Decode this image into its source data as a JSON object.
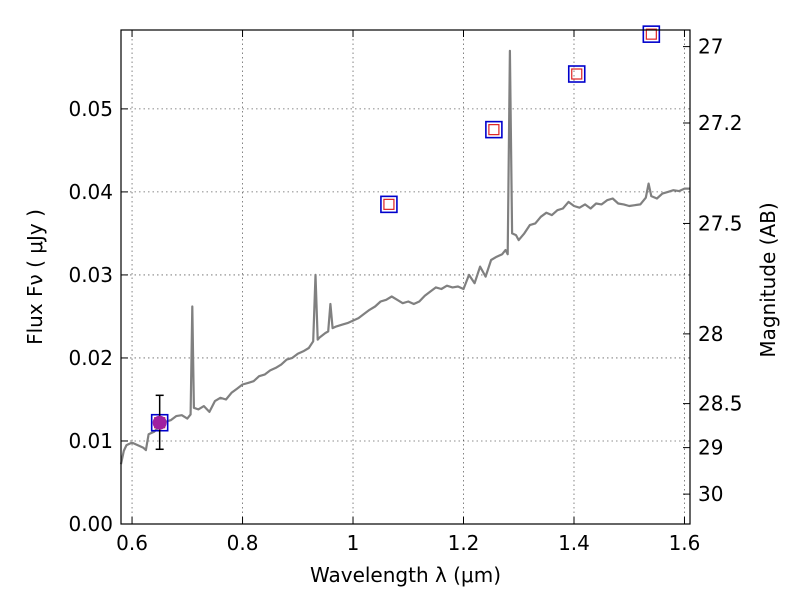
{
  "chart_data": {
    "type": "line",
    "title": "",
    "xlabel": "Wavelength  λ (μm)",
    "ylabel": "Flux  Fν  ( μJy )",
    "ylabel_right": "Magnitude (AB)",
    "xlim": [
      0.58,
      1.61
    ],
    "ylim": [
      0.0,
      0.0595
    ],
    "xticks": [
      0.6,
      0.8,
      1.0,
      1.2,
      1.4,
      1.6
    ],
    "xtick_labels": [
      "0.6",
      "0.8",
      "1",
      "1.2",
      "1.4",
      "1.6"
    ],
    "yticks": [
      0.0,
      0.01,
      0.02,
      0.03,
      0.04,
      0.05
    ],
    "ytick_labels": [
      "0.00",
      "0.01",
      "0.02",
      "0.03",
      "0.04",
      "0.05"
    ],
    "right_ticks": [
      {
        "label": "27",
        "flux": 0.0575
      },
      {
        "label": "27.2",
        "flux": 0.0483
      },
      {
        "label": "27.5",
        "flux": 0.0362
      },
      {
        "label": "28",
        "flux": 0.0229
      },
      {
        "label": "28.5",
        "flux": 0.0145
      },
      {
        "label": "29",
        "flux": 0.0092
      },
      {
        "label": "30",
        "flux": 0.0036
      }
    ],
    "grid": true,
    "series": [
      {
        "kind": "line",
        "color": "#808080",
        "points": [
          [
            0.58,
            0.0072
          ],
          [
            0.585,
            0.0088
          ],
          [
            0.59,
            0.0095
          ],
          [
            0.6,
            0.0098
          ],
          [
            0.61,
            0.0095
          ],
          [
            0.62,
            0.0092
          ],
          [
            0.625,
            0.0089
          ],
          [
            0.63,
            0.0108
          ],
          [
            0.64,
            0.0111
          ],
          [
            0.65,
            0.0118
          ],
          [
            0.66,
            0.0123
          ],
          [
            0.67,
            0.0125
          ],
          [
            0.68,
            0.013
          ],
          [
            0.69,
            0.0131
          ],
          [
            0.7,
            0.0127
          ],
          [
            0.706,
            0.0132
          ],
          [
            0.709,
            0.0262
          ],
          [
            0.712,
            0.014
          ],
          [
            0.72,
            0.0138
          ],
          [
            0.73,
            0.0142
          ],
          [
            0.74,
            0.0135
          ],
          [
            0.75,
            0.0148
          ],
          [
            0.76,
            0.0152
          ],
          [
            0.77,
            0.015
          ],
          [
            0.78,
            0.0158
          ],
          [
            0.79,
            0.0163
          ],
          [
            0.8,
            0.0168
          ],
          [
            0.81,
            0.017
          ],
          [
            0.82,
            0.0172
          ],
          [
            0.83,
            0.0178
          ],
          [
            0.84,
            0.018
          ],
          [
            0.85,
            0.0185
          ],
          [
            0.86,
            0.0188
          ],
          [
            0.87,
            0.0192
          ],
          [
            0.88,
            0.0198
          ],
          [
            0.89,
            0.02
          ],
          [
            0.9,
            0.0205
          ],
          [
            0.91,
            0.0208
          ],
          [
            0.92,
            0.0212
          ],
          [
            0.928,
            0.022
          ],
          [
            0.932,
            0.03
          ],
          [
            0.936,
            0.0222
          ],
          [
            0.94,
            0.0225
          ],
          [
            0.95,
            0.023
          ],
          [
            0.955,
            0.0232
          ],
          [
            0.959,
            0.0265
          ],
          [
            0.963,
            0.0236
          ],
          [
            0.97,
            0.0238
          ],
          [
            0.98,
            0.024
          ],
          [
            0.99,
            0.0242
          ],
          [
            1.0,
            0.0245
          ],
          [
            1.01,
            0.0248
          ],
          [
            1.02,
            0.0253
          ],
          [
            1.03,
            0.0258
          ],
          [
            1.04,
            0.0262
          ],
          [
            1.05,
            0.0268
          ],
          [
            1.06,
            0.027
          ],
          [
            1.07,
            0.0274
          ],
          [
            1.08,
            0.027
          ],
          [
            1.09,
            0.0266
          ],
          [
            1.1,
            0.0268
          ],
          [
            1.11,
            0.0265
          ],
          [
            1.12,
            0.0268
          ],
          [
            1.13,
            0.0275
          ],
          [
            1.14,
            0.028
          ],
          [
            1.15,
            0.0285
          ],
          [
            1.16,
            0.0283
          ],
          [
            1.17,
            0.0287
          ],
          [
            1.18,
            0.0285
          ],
          [
            1.19,
            0.0286
          ],
          [
            1.2,
            0.0283
          ],
          [
            1.21,
            0.03
          ],
          [
            1.22,
            0.029
          ],
          [
            1.23,
            0.031
          ],
          [
            1.24,
            0.0298
          ],
          [
            1.25,
            0.0318
          ],
          [
            1.26,
            0.0322
          ],
          [
            1.27,
            0.0325
          ],
          [
            1.276,
            0.033
          ],
          [
            1.28,
            0.0325
          ],
          [
            1.284,
            0.057
          ],
          [
            1.288,
            0.035
          ],
          [
            1.295,
            0.0348
          ],
          [
            1.3,
            0.0342
          ],
          [
            1.31,
            0.035
          ],
          [
            1.32,
            0.036
          ],
          [
            1.33,
            0.0362
          ],
          [
            1.34,
            0.037
          ],
          [
            1.35,
            0.0375
          ],
          [
            1.36,
            0.0372
          ],
          [
            1.37,
            0.0378
          ],
          [
            1.38,
            0.038
          ],
          [
            1.39,
            0.0388
          ],
          [
            1.4,
            0.0383
          ],
          [
            1.41,
            0.0381
          ],
          [
            1.42,
            0.0385
          ],
          [
            1.43,
            0.038
          ],
          [
            1.44,
            0.0386
          ],
          [
            1.45,
            0.0385
          ],
          [
            1.46,
            0.039
          ],
          [
            1.47,
            0.0392
          ],
          [
            1.48,
            0.0386
          ],
          [
            1.49,
            0.0385
          ],
          [
            1.5,
            0.0383
          ],
          [
            1.51,
            0.0384
          ],
          [
            1.52,
            0.0385
          ],
          [
            1.53,
            0.0393
          ],
          [
            1.535,
            0.041
          ],
          [
            1.54,
            0.0395
          ],
          [
            1.55,
            0.0392
          ],
          [
            1.56,
            0.0398
          ],
          [
            1.57,
            0.04
          ],
          [
            1.58,
            0.0402
          ],
          [
            1.59,
            0.0401
          ],
          [
            1.6,
            0.0404
          ],
          [
            1.61,
            0.0404
          ]
        ]
      },
      {
        "kind": "squares",
        "outer_color": "#0000cc",
        "inner_color": "#dd2222",
        "points": [
          [
            0.65,
            0.0122
          ],
          [
            1.065,
            0.0385
          ],
          [
            1.255,
            0.0475
          ],
          [
            1.405,
            0.0542
          ],
          [
            1.54,
            0.059
          ]
        ]
      },
      {
        "kind": "points",
        "color": "#a020a0",
        "points": [
          {
            "x": 0.65,
            "y": 0.0122,
            "yerr_low": 0.0032,
            "yerr_high": 0.0033
          }
        ]
      }
    ]
  }
}
